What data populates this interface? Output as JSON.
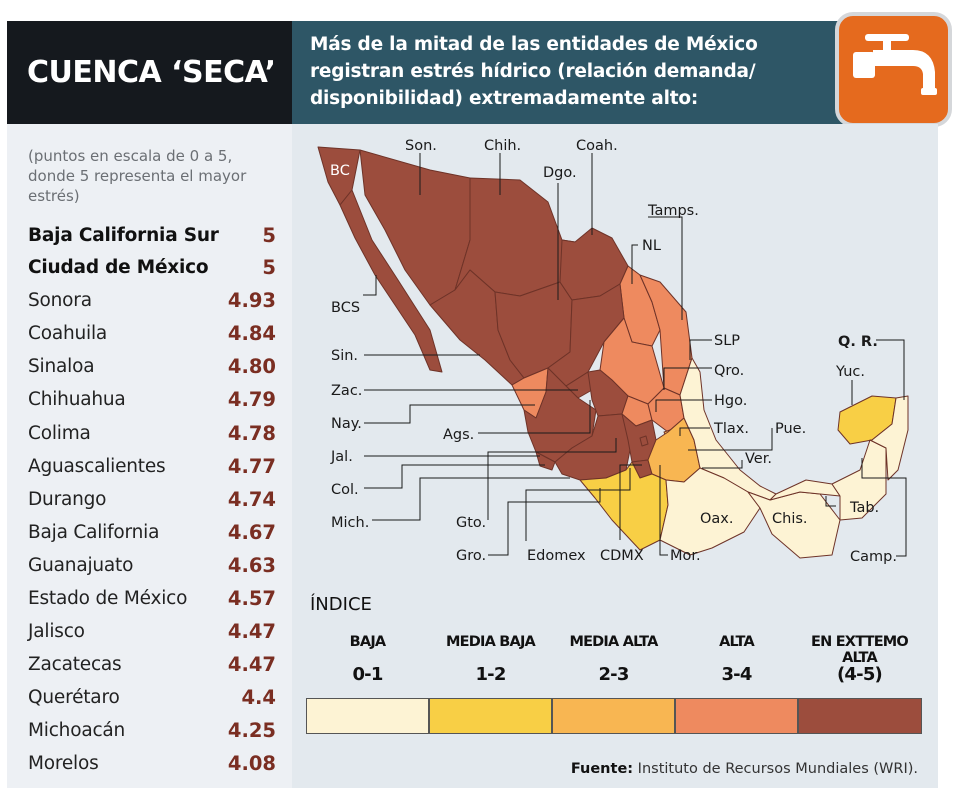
{
  "left": {
    "title": "CUENCA ‘SECA’",
    "note": "(puntos en escala de 0 a 5, donde 5 representa el mayor estrés)",
    "ranking": [
      {
        "name": "Baja California Sur",
        "value": "5",
        "bold": true
      },
      {
        "name": "Ciudad de México",
        "value": "5",
        "bold": true
      },
      {
        "name": "Sonora",
        "value": "4.93"
      },
      {
        "name": "Coahuila",
        "value": "4.84"
      },
      {
        "name": "Sinaloa",
        "value": "4.80"
      },
      {
        "name": "Chihuahua",
        "value": "4.79"
      },
      {
        "name": "Colima",
        "value": "4.78"
      },
      {
        "name": "Aguascalientes",
        "value": "4.77"
      },
      {
        "name": "Durango",
        "value": "4.74"
      },
      {
        "name": "Baja California",
        "value": "4.67"
      },
      {
        "name": "Guanajuato",
        "value": "4.63"
      },
      {
        "name": "Estado de México",
        "value": "4.57"
      },
      {
        "name": "Jalisco",
        "value": "4.47"
      },
      {
        "name": "Zacatecas",
        "value": "4.47"
      },
      {
        "name": "Querétaro",
        "value": "4.4"
      },
      {
        "name": "Michoacán",
        "value": "4.25"
      },
      {
        "name": "Morelos",
        "value": "4.08"
      }
    ]
  },
  "header": {
    "line1": "Más de la mitad de las entidades de México",
    "line2": "registran estrés hídrico (relación demanda/",
    "line3": "disponibilidad) extremadamente alto:",
    "icon": "faucet-icon"
  },
  "map": {
    "labels": {
      "bc": "BC",
      "son": "Son.",
      "chih": "Chih.",
      "coah": "Coah.",
      "dgo": "Dgo.",
      "tamps": "Tamps.",
      "nl": "NL",
      "bcs": "BCS",
      "sin": "Sin.",
      "zac": "Zac.",
      "nay": "Nay.",
      "ags": "Ags.",
      "jal": "Jal.",
      "col": "Col.",
      "mich": "Mich.",
      "gto": "Gto.",
      "gro": "Gro.",
      "edomex": "Edomex",
      "cdmx": "CDMX",
      "mor": "Mor.",
      "slp": "SLP",
      "qro": "Qro.",
      "hgo": "Hgo.",
      "tlax": "Tlax.",
      "pue": "Pue.",
      "ver": "Ver.",
      "oax": "Oax.",
      "chis": "Chis.",
      "tab": "Tab.",
      "camp": "Camp.",
      "qr": "Q. R.",
      "yuc": "Yuc."
    },
    "colors": {
      "baja": "#fdf3d4",
      "media_baja": "#f8cf45",
      "media_alta": "#f8b652",
      "alta": "#ee8a5f",
      "extremo_alta": "#9c4d3d",
      "border": "#6e3328"
    }
  },
  "legend": {
    "title": "ÍNDICE",
    "items": [
      {
        "name": "BAJA",
        "range": "0-1",
        "color": "#fdf3d4"
      },
      {
        "name": "MEDIA BAJA",
        "range": "1-2",
        "color": "#f8cf45"
      },
      {
        "name": "MEDIA ALTA",
        "range": "2-3",
        "color": "#f8b652"
      },
      {
        "name": "ALTA",
        "range": "3-4",
        "color": "#ee8a5f"
      },
      {
        "name": "EN EXTTEMO ALTA",
        "range": "(4-5)",
        "color": "#9c4d3d"
      }
    ]
  },
  "source": {
    "label": "Fuente:",
    "text": " Instituto de Recursos Mundiales (WRI)."
  }
}
